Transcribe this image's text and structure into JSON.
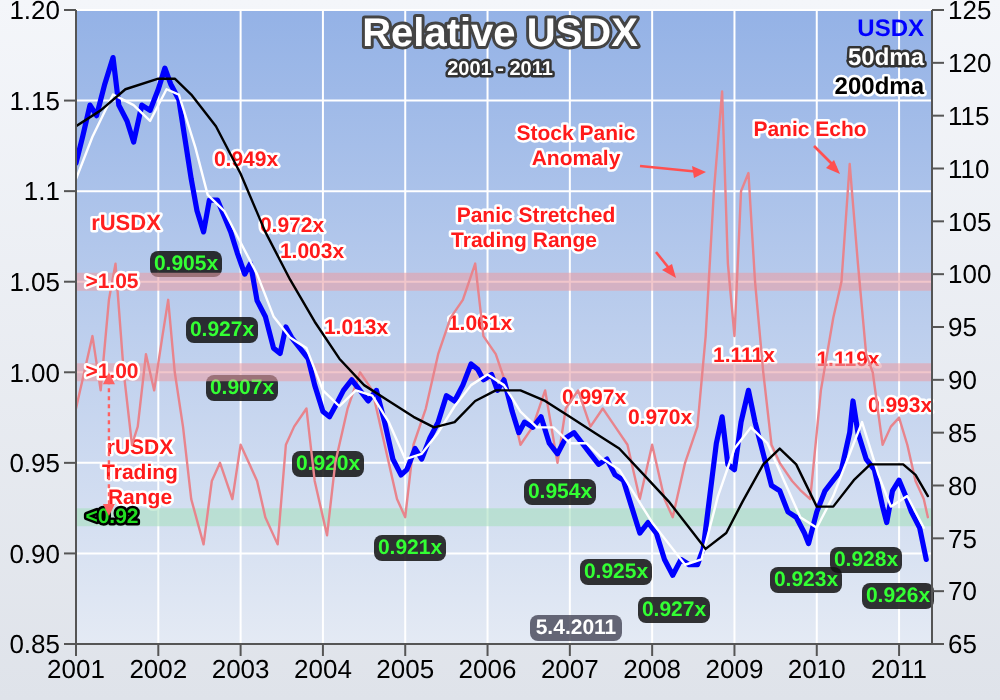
{
  "chart_data": {
    "type": "line",
    "title": "Relative USDX",
    "subtitle": "2001 - 2011",
    "xlim": [
      2001,
      2011.4
    ],
    "xticks": [
      2001,
      2002,
      2003,
      2004,
      2005,
      2006,
      2007,
      2008,
      2009,
      2010,
      2011
    ],
    "ylim": [
      0.85,
      1.2
    ],
    "yticks": [
      0.85,
      {
        "value": 0.9,
        "label": "0.90"
      },
      0.95,
      {
        "value": 1.0,
        "label": "1.00"
      },
      1.05,
      1.1,
      1.15,
      {
        "value": 1.2,
        "label": "1.20"
      }
    ],
    "y2lim": [
      65,
      125
    ],
    "y2ticks": [
      65,
      70,
      75,
      80,
      85,
      90,
      95,
      100,
      105,
      110,
      115,
      120,
      125
    ],
    "grid": true,
    "legend": "top right",
    "series": [
      {
        "name": "rUSDX",
        "color": "#e8848c",
        "x": [
          2001.0,
          2001.1,
          2001.2,
          2001.3,
          2001.4,
          2001.48,
          2001.58,
          2001.68,
          2001.75,
          2001.85,
          2001.95,
          2002.05,
          2002.12,
          2002.2,
          2002.3,
          2002.4,
          2002.55,
          2002.65,
          2002.75,
          2002.9,
          2003.0,
          2003.1,
          2003.2,
          2003.3,
          2003.45,
          2003.55,
          2003.65,
          2003.8,
          2003.9,
          2004.05,
          2004.15,
          2004.3,
          2004.45,
          2004.6,
          2004.75,
          2004.9,
          2005.0,
          2005.1,
          2005.25,
          2005.4,
          2005.55,
          2005.7,
          2005.85,
          2005.95,
          2006.1,
          2006.25,
          2006.4,
          2006.55,
          2006.7,
          2006.85,
          2006.95,
          2007.1,
          2007.25,
          2007.4,
          2007.55,
          2007.7,
          2007.85,
          2008.0,
          2008.15,
          2008.25,
          2008.4,
          2008.55,
          2008.65,
          2008.75,
          2008.85,
          2008.92,
          2009.0,
          2009.08,
          2009.17,
          2009.25,
          2009.35,
          2009.45,
          2009.55,
          2009.7,
          2009.8,
          2009.92,
          2010.05,
          2010.2,
          2010.3,
          2010.4,
          2010.5,
          2010.6,
          2010.68,
          2010.8,
          2010.9,
          2011.0,
          2011.1,
          2011.2,
          2011.3,
          2011.35
        ],
        "values": [
          0.98,
          1.0,
          1.02,
          0.99,
          1.04,
          1.06,
          1.0,
          0.96,
          0.97,
          1.01,
          0.99,
          1.02,
          1.04,
          1.0,
          0.97,
          0.93,
          0.905,
          0.94,
          0.95,
          0.93,
          0.96,
          0.95,
          0.94,
          0.92,
          0.905,
          0.96,
          0.97,
          0.98,
          0.94,
          0.91,
          0.95,
          0.98,
          1.0,
          0.99,
          0.96,
          0.93,
          0.92,
          0.96,
          0.98,
          1.01,
          1.03,
          1.04,
          1.06,
          1.02,
          1.01,
          0.99,
          0.96,
          0.97,
          0.99,
          0.95,
          0.98,
          0.99,
          0.97,
          0.98,
          0.97,
          0.96,
          0.93,
          0.96,
          0.93,
          0.92,
          0.95,
          0.97,
          1.02,
          1.1,
          1.155,
          1.06,
          1.02,
          1.1,
          1.11,
          1.05,
          1.0,
          0.96,
          0.95,
          0.94,
          0.935,
          0.93,
          0.99,
          1.03,
          1.05,
          1.115,
          1.06,
          1.01,
          1.0,
          0.96,
          0.97,
          0.975,
          0.96,
          0.94,
          0.93,
          0.92
        ]
      },
      {
        "name": "USDX",
        "color": "#0000ff",
        "axis": "y2",
        "x": [
          2001.0,
          2001.08,
          2001.17,
          2001.25,
          2001.35,
          2001.45,
          2001.52,
          2001.62,
          2001.7,
          2001.8,
          2001.9,
          2002.0,
          2002.08,
          2002.15,
          2002.25,
          2002.32,
          2002.4,
          2002.47,
          2002.55,
          2002.62,
          2002.72,
          2002.8,
          2002.88,
          2002.96,
          2003.05,
          2003.12,
          2003.2,
          2003.3,
          2003.4,
          2003.48,
          2003.55,
          2003.62,
          2003.72,
          2003.82,
          2003.9,
          2004.0,
          2004.08,
          2004.15,
          2004.25,
          2004.35,
          2004.45,
          2004.55,
          2004.65,
          2004.75,
          2004.85,
          2004.95,
          2005.02,
          2005.12,
          2005.2,
          2005.3,
          2005.4,
          2005.5,
          2005.6,
          2005.7,
          2005.8,
          2005.88,
          2005.95,
          2006.05,
          2006.12,
          2006.2,
          2006.3,
          2006.38,
          2006.45,
          2006.55,
          2006.65,
          2006.75,
          2006.85,
          2006.95,
          2007.05,
          2007.15,
          2007.25,
          2007.35,
          2007.45,
          2007.55,
          2007.65,
          2007.75,
          2007.85,
          2007.95,
          2008.05,
          2008.15,
          2008.25,
          2008.35,
          2008.45,
          2008.55,
          2008.62,
          2008.7,
          2008.78,
          2008.85,
          2008.92,
          2009.0,
          2009.08,
          2009.17,
          2009.25,
          2009.35,
          2009.45,
          2009.55,
          2009.65,
          2009.75,
          2009.85,
          2009.9,
          2010.0,
          2010.1,
          2010.2,
          2010.3,
          2010.4,
          2010.44,
          2010.5,
          2010.6,
          2010.7,
          2010.8,
          2010.85,
          2010.92,
          2011.0,
          2011.08,
          2011.15,
          2011.25,
          2011.33
        ],
        "values": [
          110.5,
          113,
          116,
          115,
          118,
          120.5,
          116,
          114.5,
          112.5,
          116,
          115.5,
          117.5,
          119.5,
          118,
          116.5,
          113,
          109,
          106,
          104,
          107,
          107,
          105.5,
          104,
          102,
          100,
          101,
          97.5,
          96,
          93,
          92.5,
          95,
          94,
          93,
          92,
          89.5,
          87,
          86.5,
          87.5,
          89,
          90,
          89,
          88,
          89,
          86,
          82.5,
          81,
          81.5,
          83.5,
          82.5,
          84.5,
          86,
          88.5,
          88,
          89.5,
          91.5,
          91,
          90,
          90.5,
          89,
          90,
          87,
          85,
          86,
          85.5,
          86.5,
          84,
          83,
          84.5,
          85,
          84,
          83,
          82,
          82.5,
          81,
          80.5,
          78,
          75.5,
          76.5,
          75.5,
          73,
          71.5,
          73,
          72.5,
          72.5,
          74,
          79,
          84,
          86.5,
          82,
          81.5,
          86,
          89,
          86,
          83,
          80,
          79.5,
          77.5,
          77,
          75.5,
          74.5,
          77.5,
          79.5,
          80.5,
          81.5,
          85,
          88,
          85,
          82.5,
          81.5,
          78,
          76.5,
          79.5,
          80.5,
          79,
          77.5,
          76,
          73
        ]
      },
      {
        "name": "50dma",
        "color": "#ffffff",
        "axis": "y2",
        "x": [
          2001.0,
          2001.2,
          2001.45,
          2001.7,
          2001.9,
          2002.1,
          2002.25,
          2002.45,
          2002.6,
          2002.8,
          2003.0,
          2003.2,
          2003.4,
          2003.6,
          2003.8,
          2004.0,
          2004.2,
          2004.4,
          2004.6,
          2004.8,
          2005.0,
          2005.2,
          2005.4,
          2005.6,
          2005.8,
          2006.0,
          2006.2,
          2006.4,
          2006.6,
          2006.8,
          2007.0,
          2007.2,
          2007.4,
          2007.6,
          2007.8,
          2008.0,
          2008.2,
          2008.4,
          2008.6,
          2008.8,
          2009.0,
          2009.2,
          2009.4,
          2009.6,
          2009.8,
          2010.0,
          2010.2,
          2010.4,
          2010.55,
          2010.75,
          2010.9,
          2011.1,
          2011.3
        ],
        "values": [
          109,
          113,
          117,
          116,
          114.5,
          117.5,
          117,
          112,
          107.5,
          106,
          103,
          100,
          96,
          94,
          93,
          89,
          87.5,
          89,
          88.5,
          86,
          82.5,
          83,
          85,
          87.5,
          89.5,
          90.5,
          89.5,
          87,
          85.5,
          85.5,
          84,
          84,
          82.5,
          81.5,
          79,
          76.5,
          74.5,
          72.5,
          73,
          79,
          83.5,
          85.5,
          84,
          80.5,
          77,
          76,
          79,
          83,
          86,
          81,
          78,
          79,
          76
        ]
      },
      {
        "name": "200dma",
        "color": "#000000",
        "axis": "y2",
        "x": [
          2001.0,
          2001.3,
          2001.6,
          2002.0,
          2002.2,
          2002.4,
          2002.7,
          2003.0,
          2003.3,
          2003.6,
          2003.9,
          2004.2,
          2004.5,
          2004.8,
          2005.1,
          2005.35,
          2005.6,
          2005.85,
          2006.1,
          2006.4,
          2006.7,
          2007.0,
          2007.3,
          2007.6,
          2007.9,
          2008.2,
          2008.45,
          2008.65,
          2008.9,
          2009.1,
          2009.35,
          2009.55,
          2009.75,
          2010.0,
          2010.2,
          2010.45,
          2010.65,
          2010.85,
          2011.05,
          2011.2,
          2011.35
        ],
        "values": [
          114,
          115.5,
          117.5,
          118.5,
          118.5,
          117,
          114,
          109.5,
          104,
          99.5,
          95.5,
          92,
          89.5,
          88,
          86.5,
          85.5,
          86,
          88,
          89,
          89,
          88,
          86.5,
          85,
          83.5,
          81,
          78.5,
          76,
          74,
          75.5,
          78.5,
          82,
          83.5,
          82,
          78,
          78,
          80.5,
          82,
          82,
          82,
          81,
          79
        ]
      }
    ],
    "bands": [
      {
        "axis": "y",
        "from": 1.045,
        "to": 1.055,
        "label": ">1.05",
        "color": "#e8a0a8"
      },
      {
        "axis": "y",
        "from": 0.995,
        "to": 1.005,
        "label": ">1.00",
        "color": "#e8a0a8"
      },
      {
        "axis": "y",
        "from": 0.915,
        "to": 0.925,
        "label": "<0.92",
        "color": "#a8e0c0"
      }
    ],
    "annotations": [
      "0.949x",
      "0.972x",
      "1.003x",
      "1.013x",
      "1.061x",
      "0.997x",
      "0.970x",
      "1.111x",
      "1.119x",
      "0.993x",
      "0.905x",
      "0.927x",
      "0.907x",
      "0.920x",
      "0.921x",
      "0.954x",
      "0.925x",
      "0.927x",
      "0.923x",
      "0.928x",
      "0.926x",
      {
        "text": "rUSDX Trading Range",
        "x": 2001.4,
        "y": 1.0
      },
      "Stock Panic Anomaly",
      "Panic Stretched Trading Range",
      "Panic Echo",
      "5.4.2011"
    ]
  }
}
